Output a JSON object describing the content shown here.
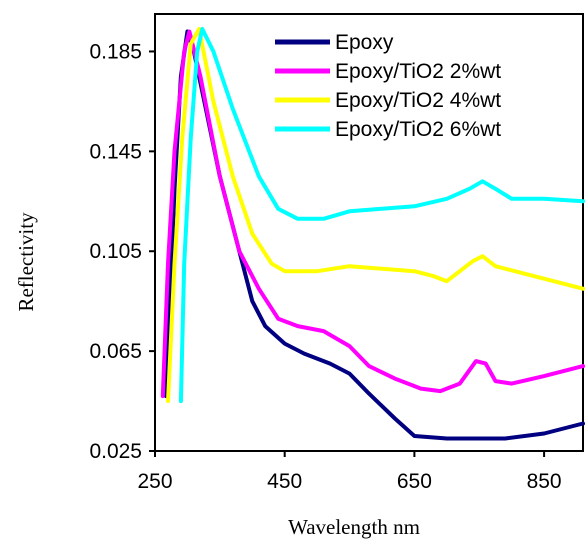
{
  "chart_data": {
    "type": "line",
    "xlabel": "Wavelength nm",
    "ylabel": "Reflectivity",
    "xlim": [
      250,
      910
    ],
    "ylim": [
      0.025,
      0.2
    ],
    "xticks": [
      250,
      450,
      650,
      850
    ],
    "yticks": [
      0.025,
      0.065,
      0.105,
      0.145,
      0.185
    ],
    "ytick_labels": [
      "0.025",
      "0.065",
      "0.105",
      "0.145",
      "0.185"
    ],
    "grid": false,
    "legend_position": "top-right",
    "series": [
      {
        "name": "Epoxy",
        "color": "#000080",
        "points": [
          [
            267,
            0.047
          ],
          [
            280,
            0.13
          ],
          [
            290,
            0.175
          ],
          [
            300,
            0.193
          ],
          [
            310,
            0.185
          ],
          [
            330,
            0.16
          ],
          [
            350,
            0.135
          ],
          [
            380,
            0.105
          ],
          [
            400,
            0.085
          ],
          [
            420,
            0.075
          ],
          [
            450,
            0.068
          ],
          [
            480,
            0.064
          ],
          [
            520,
            0.06
          ],
          [
            550,
            0.056
          ],
          [
            580,
            0.048
          ],
          [
            620,
            0.038
          ],
          [
            650,
            0.031
          ],
          [
            700,
            0.03
          ],
          [
            750,
            0.03
          ],
          [
            790,
            0.03
          ],
          [
            850,
            0.032
          ],
          [
            910,
            0.036
          ]
        ]
      },
      {
        "name": "Epoxy/TiO2 2%wt",
        "color": "#FF00FF",
        "points": [
          [
            262,
            0.047
          ],
          [
            270,
            0.1
          ],
          [
            280,
            0.145
          ],
          [
            295,
            0.185
          ],
          [
            303,
            0.193
          ],
          [
            320,
            0.175
          ],
          [
            350,
            0.135
          ],
          [
            380,
            0.105
          ],
          [
            410,
            0.09
          ],
          [
            440,
            0.078
          ],
          [
            470,
            0.075
          ],
          [
            510,
            0.073
          ],
          [
            550,
            0.067
          ],
          [
            580,
            0.059
          ],
          [
            620,
            0.054
          ],
          [
            660,
            0.05
          ],
          [
            690,
            0.049
          ],
          [
            720,
            0.052
          ],
          [
            745,
            0.061
          ],
          [
            760,
            0.06
          ],
          [
            775,
            0.053
          ],
          [
            800,
            0.052
          ],
          [
            850,
            0.055
          ],
          [
            910,
            0.059
          ]
        ]
      },
      {
        "name": "Epoxy/TiO2 4%wt",
        "color": "#FFFF00",
        "points": [
          [
            270,
            0.045
          ],
          [
            280,
            0.1
          ],
          [
            292,
            0.15
          ],
          [
            305,
            0.188
          ],
          [
            318,
            0.194
          ],
          [
            340,
            0.165
          ],
          [
            370,
            0.135
          ],
          [
            400,
            0.112
          ],
          [
            430,
            0.1
          ],
          [
            450,
            0.097
          ],
          [
            500,
            0.097
          ],
          [
            550,
            0.099
          ],
          [
            600,
            0.098
          ],
          [
            650,
            0.097
          ],
          [
            680,
            0.095
          ],
          [
            700,
            0.093
          ],
          [
            740,
            0.101
          ],
          [
            755,
            0.103
          ],
          [
            775,
            0.099
          ],
          [
            820,
            0.096
          ],
          [
            910,
            0.09
          ]
        ]
      },
      {
        "name": "Epoxy/TiO2 6%wt",
        "color": "#00FFFF",
        "points": [
          [
            290,
            0.045
          ],
          [
            295,
            0.1
          ],
          [
            305,
            0.15
          ],
          [
            315,
            0.185
          ],
          [
            323,
            0.194
          ],
          [
            340,
            0.185
          ],
          [
            370,
            0.162
          ],
          [
            410,
            0.135
          ],
          [
            440,
            0.122
          ],
          [
            470,
            0.118
          ],
          [
            510,
            0.118
          ],
          [
            550,
            0.121
          ],
          [
            600,
            0.122
          ],
          [
            650,
            0.123
          ],
          [
            700,
            0.126
          ],
          [
            735,
            0.13
          ],
          [
            755,
            0.133
          ],
          [
            775,
            0.13
          ],
          [
            800,
            0.126
          ],
          [
            850,
            0.126
          ],
          [
            910,
            0.125
          ]
        ]
      }
    ]
  }
}
